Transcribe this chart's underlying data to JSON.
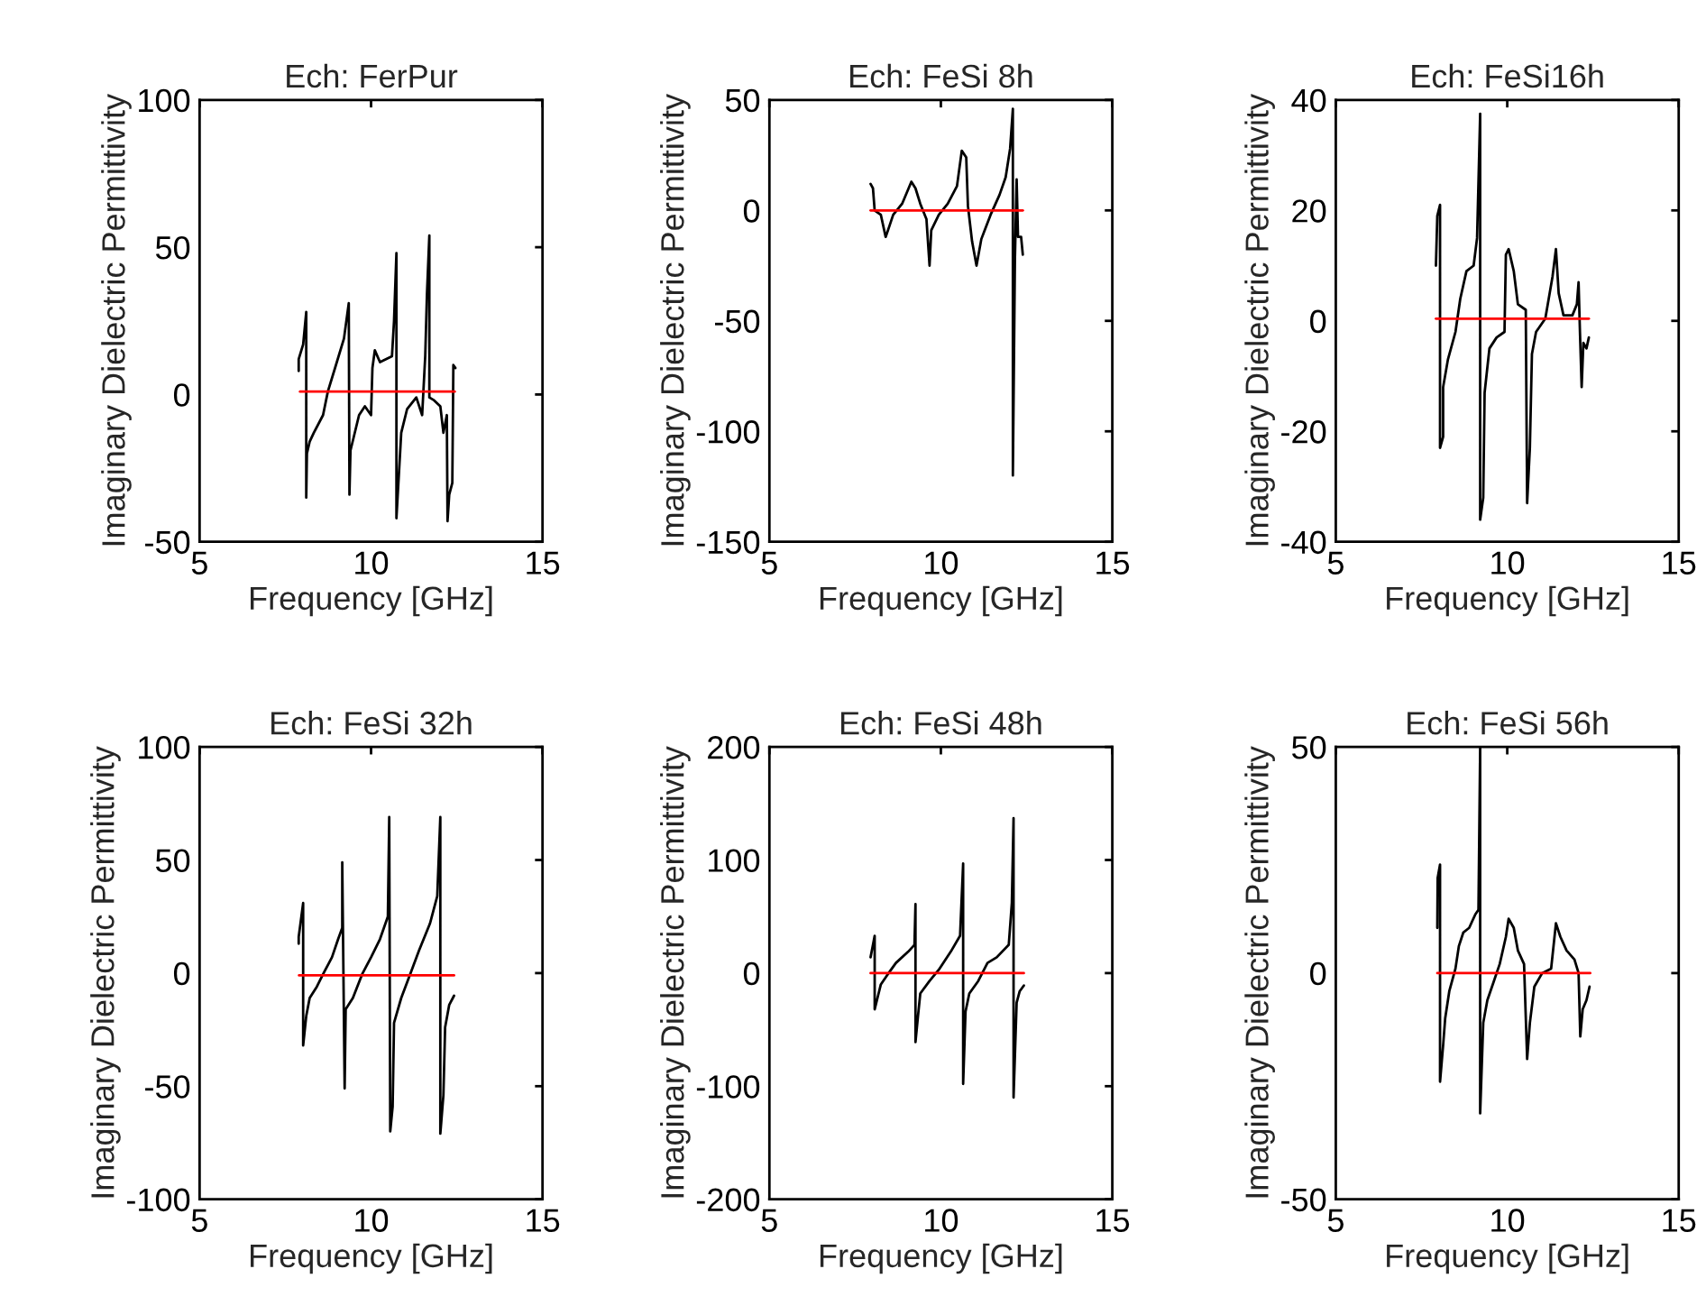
{
  "chart_data": [
    {
      "type": "line",
      "title": "Ech: FerPur",
      "xlabel": "Frequency [GHz]",
      "ylabel": "Imaginary Dielectric Permittivity",
      "xlim": [
        5,
        15
      ],
      "xticks": [
        5,
        10,
        15
      ],
      "ylim": [
        -50,
        100
      ],
      "yticks": [
        -50,
        0,
        50,
        100
      ],
      "grid": false,
      "legend": false,
      "series": [
        {
          "color": "#000000",
          "x": [
            7.89,
            7.89,
            8.02,
            8.11,
            8.11,
            8.13,
            8.21,
            8.33,
            8.6,
            8.74,
            8.95,
            9.21,
            9.35,
            9.37,
            9.4,
            9.65,
            9.82,
            10.0,
            10.04,
            10.11,
            10.26,
            10.61,
            10.67,
            10.74,
            10.74,
            10.88,
            11.05,
            11.32,
            11.49,
            11.58,
            11.63,
            11.7,
            11.7,
            11.84,
            12.02,
            12.11,
            12.21,
            12.23,
            12.28,
            12.37,
            12.4,
            12.46
          ],
          "values": [
            8,
            12,
            17,
            28,
            -35,
            -20,
            -16,
            -13,
            -7,
            1,
            9,
            19,
            31,
            -34,
            -19,
            -7,
            -4,
            -7,
            9,
            15,
            11,
            13,
            25,
            48,
            -42,
            -13,
            -5,
            -1,
            -7,
            13,
            34,
            54,
            -1,
            -2,
            -4,
            -13,
            -7,
            -43,
            -34,
            -30,
            10,
            9
          ]
        },
        {
          "color": "#ff0000",
          "x": [
            7.93,
            12.44
          ],
          "values": [
            1,
            1
          ]
        }
      ]
    },
    {
      "type": "line",
      "title": "Ech: FeSi 8h",
      "xlabel": "Frequency [GHz]",
      "ylabel": "Imaginary Dielectric Permittivity",
      "xlim": [
        5,
        15
      ],
      "xticks": [
        5,
        10,
        15
      ],
      "ylim": [
        -150,
        50
      ],
      "yticks": [
        -150,
        -100,
        -50,
        0,
        50
      ],
      "grid": false,
      "legend": false,
      "series": [
        {
          "color": "#000000",
          "x": [
            7.95,
            8.02,
            8.07,
            8.25,
            8.39,
            8.48,
            8.61,
            8.87,
            9.14,
            9.26,
            9.4,
            9.58,
            9.67,
            9.72,
            9.94,
            10.2,
            10.47,
            10.61,
            10.74,
            10.79,
            10.91,
            11.04,
            11.18,
            11.45,
            11.71,
            11.89,
            12.02,
            12.1,
            12.1,
            12.16,
            12.21,
            12.25,
            12.34,
            12.39
          ],
          "values": [
            12,
            10,
            0,
            -2,
            -12,
            -8,
            -2,
            3,
            13,
            10,
            3,
            -4,
            -25,
            -9,
            -2,
            3,
            11,
            27,
            24,
            2,
            -14,
            -25,
            -13,
            -2,
            7,
            15,
            28,
            46,
            -120,
            -22,
            14,
            -12,
            -12,
            -20
          ]
        },
        {
          "color": "#ff0000",
          "x": [
            7.95,
            12.39
          ],
          "values": [
            0,
            0
          ]
        }
      ]
    },
    {
      "type": "line",
      "title": "Ech: FeSi16h",
      "xlabel": "Frequency [GHz]",
      "ylabel": "Imaginary Dielectric Permittivity",
      "xlim": [
        5,
        15
      ],
      "xticks": [
        5,
        10,
        15
      ],
      "ylim": [
        -40,
        40
      ],
      "yticks": [
        -40,
        -20,
        0,
        20,
        40
      ],
      "grid": false,
      "legend": false,
      "series": [
        {
          "color": "#000000",
          "x": [
            7.92,
            7.96,
            8.04,
            8.04,
            8.13,
            8.13,
            8.27,
            8.49,
            8.63,
            8.81,
            9.02,
            9.12,
            9.21,
            9.21,
            9.3,
            9.34,
            9.48,
            9.69,
            9.92,
            9.96,
            10.04,
            10.19,
            10.31,
            10.54,
            10.58,
            10.66,
            10.72,
            10.84,
            11.11,
            11.32,
            11.42,
            11.5,
            11.64,
            11.9,
            12.03,
            12.08,
            12.12,
            12.17,
            12.22,
            12.31,
            12.38
          ],
          "values": [
            10,
            19,
            21,
            -23,
            -21,
            -12,
            -7,
            -2,
            4,
            9,
            10,
            15,
            37.5,
            -36,
            -32,
            -13,
            -5,
            -3,
            -2,
            12,
            13,
            9,
            3,
            2,
            -33,
            -23,
            -6,
            -2,
            0.4,
            8,
            13,
            5,
            1,
            1,
            3,
            7,
            -2,
            -12,
            -4,
            -5,
            -3
          ]
        },
        {
          "color": "#ff0000",
          "x": [
            7.92,
            12.38
          ],
          "values": [
            0.4,
            0.4
          ]
        }
      ]
    },
    {
      "type": "line",
      "title": "Ech: FeSi 32h",
      "xlabel": "Frequency [GHz]",
      "ylabel": "Imaginary Dielectric Permittivity",
      "xlim": [
        5,
        15
      ],
      "xticks": [
        5,
        10,
        15
      ],
      "ylim": [
        -100,
        100
      ],
      "yticks": [
        -100,
        -50,
        0,
        50,
        100
      ],
      "grid": false,
      "legend": false,
      "series": [
        {
          "color": "#000000",
          "x": [
            7.89,
            7.89,
            8.02,
            8.02,
            8.11,
            8.21,
            8.42,
            8.6,
            8.86,
            9.04,
            9.16,
            9.16,
            9.23,
            9.26,
            9.47,
            9.74,
            10.0,
            10.26,
            10.49,
            10.53,
            10.56,
            10.63,
            10.67,
            10.88,
            11.14,
            11.4,
            11.72,
            11.93,
            12.02,
            12.02,
            12.11,
            12.16,
            12.28,
            12.42
          ],
          "values": [
            13,
            16,
            31,
            -32,
            -19,
            -11,
            -6,
            -0.5,
            7,
            15,
            20,
            49,
            -51,
            -16,
            -11,
            -0.5,
            7,
            15,
            25,
            69,
            -70,
            -59,
            -22,
            -11,
            -0.5,
            10,
            22,
            34,
            69,
            -71,
            -54,
            -24,
            -14,
            -10
          ]
        },
        {
          "color": "#ff0000",
          "x": [
            7.9,
            12.42
          ],
          "values": [
            -1,
            -1
          ]
        }
      ]
    },
    {
      "type": "line",
      "title": "Ech: FeSi 48h",
      "xlabel": "Frequency [GHz]",
      "ylabel": "Imaginary Dielectric Permittivity",
      "xlim": [
        5,
        15
      ],
      "xticks": [
        5,
        10,
        15
      ],
      "ylim": [
        -200,
        200
      ],
      "yticks": [
        -200,
        -100,
        0,
        100,
        200
      ],
      "grid": false,
      "legend": false,
      "series": [
        {
          "color": "#000000",
          "x": [
            7.95,
            8.02,
            8.07,
            8.07,
            8.16,
            8.25,
            8.43,
            8.69,
            9.05,
            9.23,
            9.26,
            9.26,
            9.33,
            9.4,
            9.67,
            9.94,
            10.29,
            10.56,
            10.65,
            10.65,
            10.72,
            10.83,
            11.09,
            11.36,
            11.63,
            11.98,
            12.07,
            12.12,
            12.12,
            12.21,
            12.3,
            12.42
          ],
          "values": [
            14,
            25,
            33,
            -32,
            -21,
            -10,
            -2,
            9,
            19,
            25,
            61,
            -61,
            -39,
            -18,
            -7,
            3,
            19,
            33,
            97,
            -98,
            -34,
            -18,
            -7,
            9,
            14,
            25,
            62,
            137,
            -110,
            -26,
            -16,
            -11
          ]
        },
        {
          "color": "#ff0000",
          "x": [
            7.95,
            12.42
          ],
          "values": [
            0,
            0
          ]
        }
      ]
    },
    {
      "type": "line",
      "title": "Ech: FeSi 56h",
      "xlabel": "Frequency [GHz]",
      "ylabel": "Imaginary Dielectric Permittivity",
      "xlim": [
        5,
        15
      ],
      "xticks": [
        5,
        10,
        15
      ],
      "ylim": [
        -50,
        50
      ],
      "yticks": [
        -50,
        0,
        50
      ],
      "grid": false,
      "legend": false,
      "series": [
        {
          "color": "#000000",
          "x": [
            7.96,
            7.97,
            8.04,
            8.04,
            8.13,
            8.19,
            8.31,
            8.49,
            8.59,
            8.72,
            8.89,
            9.07,
            9.16,
            9.21,
            9.21,
            9.3,
            9.42,
            9.6,
            9.78,
            9.96,
            10.04,
            10.19,
            10.31,
            10.49,
            10.58,
            10.66,
            10.79,
            11.02,
            11.28,
            11.42,
            11.55,
            11.73,
            11.96,
            12.08,
            12.13,
            12.2,
            12.31,
            12.4
          ],
          "values": [
            10,
            21,
            24,
            -24,
            -16,
            -10,
            -4,
            1,
            6,
            9,
            10,
            13,
            14,
            50,
            -31,
            -11,
            -6,
            -2,
            2,
            8,
            12,
            10,
            5,
            2,
            -19,
            -11,
            -3,
            0,
            1,
            11,
            8,
            5,
            3,
            0,
            -14,
            -8,
            -6,
            -3
          ]
        },
        {
          "color": "#ff0000",
          "x": [
            7.96,
            12.42
          ],
          "values": [
            0,
            0
          ]
        }
      ]
    }
  ]
}
